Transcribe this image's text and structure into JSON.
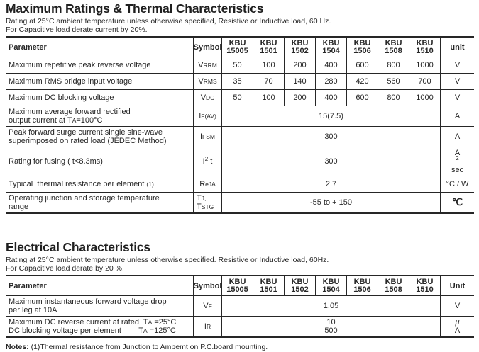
{
  "notes": {
    "label": "Notes:",
    "text": " (1)Thermal resistance from Junction to Ambemt on P.C.board mounting."
  },
  "sections": [
    {
      "title": "Maximum Ratings & Thermal Characteristics",
      "subtitle_lines": [
        "Rating at 25°C ambient temperature unless otherwise specified, Resistive or Inductive load, 60 Hz.",
        "For Capacitive load derate current by 20%."
      ],
      "table": {
        "param_header": "Parameter",
        "symbol_header": "Symbol",
        "unit_header": "unit",
        "models": [
          [
            "KBU",
            "15005"
          ],
          [
            "KBU",
            "1501"
          ],
          [
            "KBU",
            "1502"
          ],
          [
            "KBU",
            "1504"
          ],
          [
            "KBU",
            "1506"
          ],
          [
            "KBU",
            "1508"
          ],
          [
            "KBU",
            "1510"
          ]
        ],
        "rows": [
          {
            "param": [
              [
                [
                  "Maximum repetitive peak reverse voltage",
                  ""
                ]
              ]
            ],
            "symbol": [
              [
                [
                  "V",
                  ""
                ],
                [
                  "RRM",
                  "sm"
                ]
              ]
            ],
            "values": [
              "50",
              "100",
              "200",
              "400",
              "600",
              "800",
              "1000"
            ],
            "unit": [
              [
                "V",
                ""
              ]
            ]
          },
          {
            "param": [
              [
                [
                  "Maximum RMS bridge input voltage",
                  ""
                ]
              ]
            ],
            "symbol": [
              [
                [
                  "V",
                  ""
                ],
                [
                  "RMS",
                  "sm"
                ]
              ]
            ],
            "values": [
              "35",
              "70",
              "140",
              "280",
              "420",
              "560",
              "700"
            ],
            "unit": [
              [
                "V",
                ""
              ]
            ]
          },
          {
            "param": [
              [
                [
                  "Maximum DC blocking voltage",
                  ""
                ]
              ]
            ],
            "symbol": [
              [
                [
                  "V",
                  ""
                ],
                [
                  "DC",
                  "sm"
                ]
              ]
            ],
            "values": [
              "50",
              "100",
              "200",
              "400",
              "600",
              "800",
              "1000"
            ],
            "unit": [
              [
                "V",
                ""
              ]
            ]
          },
          {
            "param": [
              [
                [
                  "Maximum average forward rectified",
                  ""
                ]
              ],
              [
                [
                  "output current at T",
                  ""
                ],
                [
                  "A",
                  "sm"
                ],
                [
                  "=100°C",
                  ""
                ]
              ]
            ],
            "symbol": [
              [
                [
                  "I",
                  ""
                ],
                [
                  "F(AV)",
                  "sm"
                ]
              ]
            ],
            "span": [
              "15(7.5)"
            ],
            "unit": [
              [
                "A",
                ""
              ]
            ]
          },
          {
            "param": [
              [
                [
                  "Peak forward surge current single sine-wave",
                  ""
                ]
              ],
              [
                [
                  "superimposed on rated load (JEDEC Method)",
                  ""
                ]
              ]
            ],
            "symbol": [
              [
                [
                  "I",
                  ""
                ],
                [
                  "FSM",
                  "sm"
                ]
              ]
            ],
            "span": [
              "300"
            ],
            "unit": [
              [
                "A",
                ""
              ]
            ]
          },
          {
            "param": [
              [
                [
                  "Rating for fusing ( t<8.3ms)",
                  ""
                ]
              ]
            ],
            "symbol": [
              [
                [
                  "I",
                  ""
                ],
                [
                  "2",
                  "sup"
                ],
                [
                  " t",
                  ""
                ]
              ]
            ],
            "span": [
              "300"
            ],
            "unit": [
              [
                "A",
                ""
              ],
              [
                "2",
                "sup"
              ],
              [
                "sec",
                ""
              ]
            ]
          },
          {
            "param": [
              [
                [
                  "Typical  thermal resistance per element ",
                  ""
                ],
                [
                  "(1)",
                  "sm"
                ]
              ]
            ],
            "symbol": [
              [
                [
                  "R",
                  ""
                ],
                [
                  "eJA",
                  "sm"
                ]
              ]
            ],
            "span": [
              "2.7"
            ],
            "unit": [
              [
                "°C / W",
                ""
              ]
            ]
          },
          {
            "param": [
              [
                [
                  "Operating junction and storage temperature",
                  ""
                ]
              ],
              [
                [
                  "range",
                  ""
                ]
              ]
            ],
            "symbol": [
              [
                [
                  "T",
                  ""
                ],
                [
                  "J,",
                  "sm"
                ]
              ],
              [
                [
                  "T",
                  ""
                ],
                [
                  "STG",
                  "sm"
                ]
              ]
            ],
            "span": [
              "-55 to + 150"
            ],
            "unit": [
              [
                "℃",
                "lg"
              ]
            ]
          }
        ]
      }
    },
    {
      "title": "Electrical Characteristics",
      "subtitle_lines": [
        "Rating at 25°C ambient temperature unless otherwise specified. Resistive or Inductive load, 60Hz.",
        "For Capacitive load derate by 20 %."
      ],
      "table": {
        "param_header": "Parameter",
        "symbol_header": "Symbol",
        "unit_header": "Unit",
        "models": [
          [
            "KBU",
            "15005"
          ],
          [
            "KBU",
            "1501"
          ],
          [
            "KBU",
            "1502"
          ],
          [
            "KBU",
            "1504"
          ],
          [
            "KBU",
            "1506"
          ],
          [
            "KBU",
            "1508"
          ],
          [
            "KBU",
            "1510"
          ]
        ],
        "rows": [
          {
            "param": [
              [
                [
                  "Maximum instantaneous forward voltage drop",
                  ""
                ]
              ],
              [
                [
                  "per leg at 10A",
                  ""
                ]
              ]
            ],
            "symbol": [
              [
                [
                  "V",
                  ""
                ],
                [
                  "F",
                  "sm"
                ]
              ]
            ],
            "span": [
              "1.05"
            ],
            "unit": [
              [
                "V",
                ""
              ]
            ]
          },
          {
            "param": [
              [
                [
                  "Maximum DC reverse current at rated  T",
                  ""
                ],
                [
                  "A",
                  "sm"
                ],
                [
                  " =25°C",
                  ""
                ]
              ],
              [
                [
                  "DC blocking voltage per element        T",
                  ""
                ],
                [
                  "A",
                  "sm"
                ],
                [
                  " =125°C",
                  ""
                ]
              ]
            ],
            "symbol": [
              [
                [
                  "I",
                  ""
                ],
                [
                  "R",
                  "sm"
                ]
              ]
            ],
            "span": [
              "10",
              "500"
            ],
            "unit": [
              [
                "μ",
                "it"
              ],
              [
                "A",
                ""
              ]
            ]
          }
        ]
      }
    }
  ]
}
